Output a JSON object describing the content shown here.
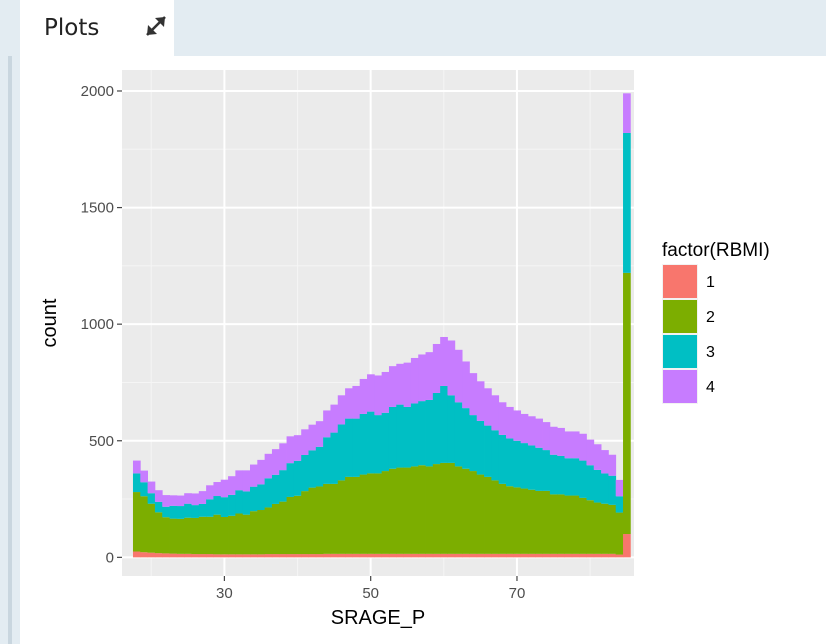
{
  "pane": {
    "tab_label": "Plots",
    "expand_icon": "expand-arrows-icon"
  },
  "chart_data": {
    "type": "bar",
    "stacked": true,
    "xlabel": "SRAGE_P",
    "ylabel": "count",
    "xticks": [
      30,
      50,
      70
    ],
    "yticks": [
      0,
      500,
      1000,
      1500,
      2000
    ],
    "xlim": [
      16,
      86
    ],
    "ylim": [
      -80,
      2090
    ],
    "bin_width": 1,
    "legend": {
      "title": "factor(RBMI)",
      "position": "right"
    },
    "grid": true,
    "x": [
      18,
      19,
      20,
      21,
      22,
      23,
      24,
      25,
      26,
      27,
      28,
      29,
      30,
      31,
      32,
      33,
      34,
      35,
      36,
      37,
      38,
      39,
      40,
      41,
      42,
      43,
      44,
      45,
      46,
      47,
      48,
      49,
      50,
      51,
      52,
      53,
      54,
      55,
      56,
      57,
      58,
      59,
      60,
      61,
      62,
      63,
      64,
      65,
      66,
      67,
      68,
      69,
      70,
      71,
      72,
      73,
      74,
      75,
      76,
      77,
      78,
      79,
      80,
      81,
      82,
      83,
      84,
      85
    ],
    "series": [
      {
        "name": "1",
        "color": "#F8766D",
        "values": [
          25,
          22,
          20,
          18,
          17,
          16,
          15,
          15,
          14,
          14,
          14,
          13,
          13,
          13,
          13,
          13,
          13,
          13,
          14,
          14,
          14,
          14,
          14,
          14,
          14,
          14,
          15,
          15,
          15,
          15,
          15,
          15,
          15,
          15,
          15,
          15,
          15,
          15,
          15,
          15,
          15,
          15,
          15,
          15,
          15,
          15,
          15,
          15,
          15,
          15,
          15,
          15,
          15,
          15,
          15,
          15,
          15,
          15,
          15,
          15,
          15,
          15,
          15,
          15,
          15,
          15,
          12,
          100
        ]
      },
      {
        "name": "2",
        "color": "#7CAE00",
        "values": [
          255,
          240,
          210,
          175,
          155,
          150,
          150,
          155,
          155,
          160,
          160,
          170,
          160,
          165,
          175,
          170,
          185,
          190,
          200,
          215,
          225,
          245,
          250,
          270,
          285,
          290,
          300,
          300,
          315,
          330,
          330,
          340,
          345,
          345,
          355,
          365,
          370,
          370,
          375,
          380,
          375,
          385,
          390,
          390,
          375,
          365,
          355,
          340,
          330,
          315,
          300,
          290,
          285,
          280,
          275,
          270,
          270,
          255,
          255,
          250,
          250,
          240,
          230,
          220,
          215,
          210,
          180,
          1120
        ]
      },
      {
        "name": "3",
        "color": "#00BFC4",
        "values": [
          80,
          60,
          45,
          45,
          45,
          55,
          55,
          60,
          55,
          55,
          75,
          80,
          85,
          90,
          100,
          100,
          105,
          110,
          125,
          125,
          135,
          145,
          150,
          155,
          160,
          170,
          200,
          220,
          240,
          250,
          250,
          260,
          265,
          250,
          250,
          265,
          270,
          260,
          270,
          275,
          285,
          305,
          330,
          290,
          275,
          260,
          240,
          230,
          220,
          215,
          210,
          205,
          200,
          195,
          190,
          185,
          175,
          170,
          165,
          160,
          160,
          160,
          150,
          140,
          130,
          125,
          70,
          600
        ]
      },
      {
        "name": "4",
        "color": "#C77CFF",
        "values": [
          55,
          50,
          50,
          50,
          50,
          45,
          45,
          45,
          50,
          55,
          60,
          60,
          75,
          80,
          85,
          90,
          95,
          105,
          105,
          110,
          115,
          115,
          110,
          110,
          110,
          110,
          115,
          120,
          125,
          130,
          140,
          150,
          160,
          170,
          175,
          175,
          175,
          190,
          195,
          200,
          205,
          210,
          210,
          235,
          225,
          200,
          180,
          170,
          160,
          150,
          140,
          135,
          130,
          125,
          125,
          125,
          120,
          120,
          120,
          115,
          115,
          115,
          110,
          110,
          100,
          90,
          70,
          170
        ]
      }
    ]
  }
}
